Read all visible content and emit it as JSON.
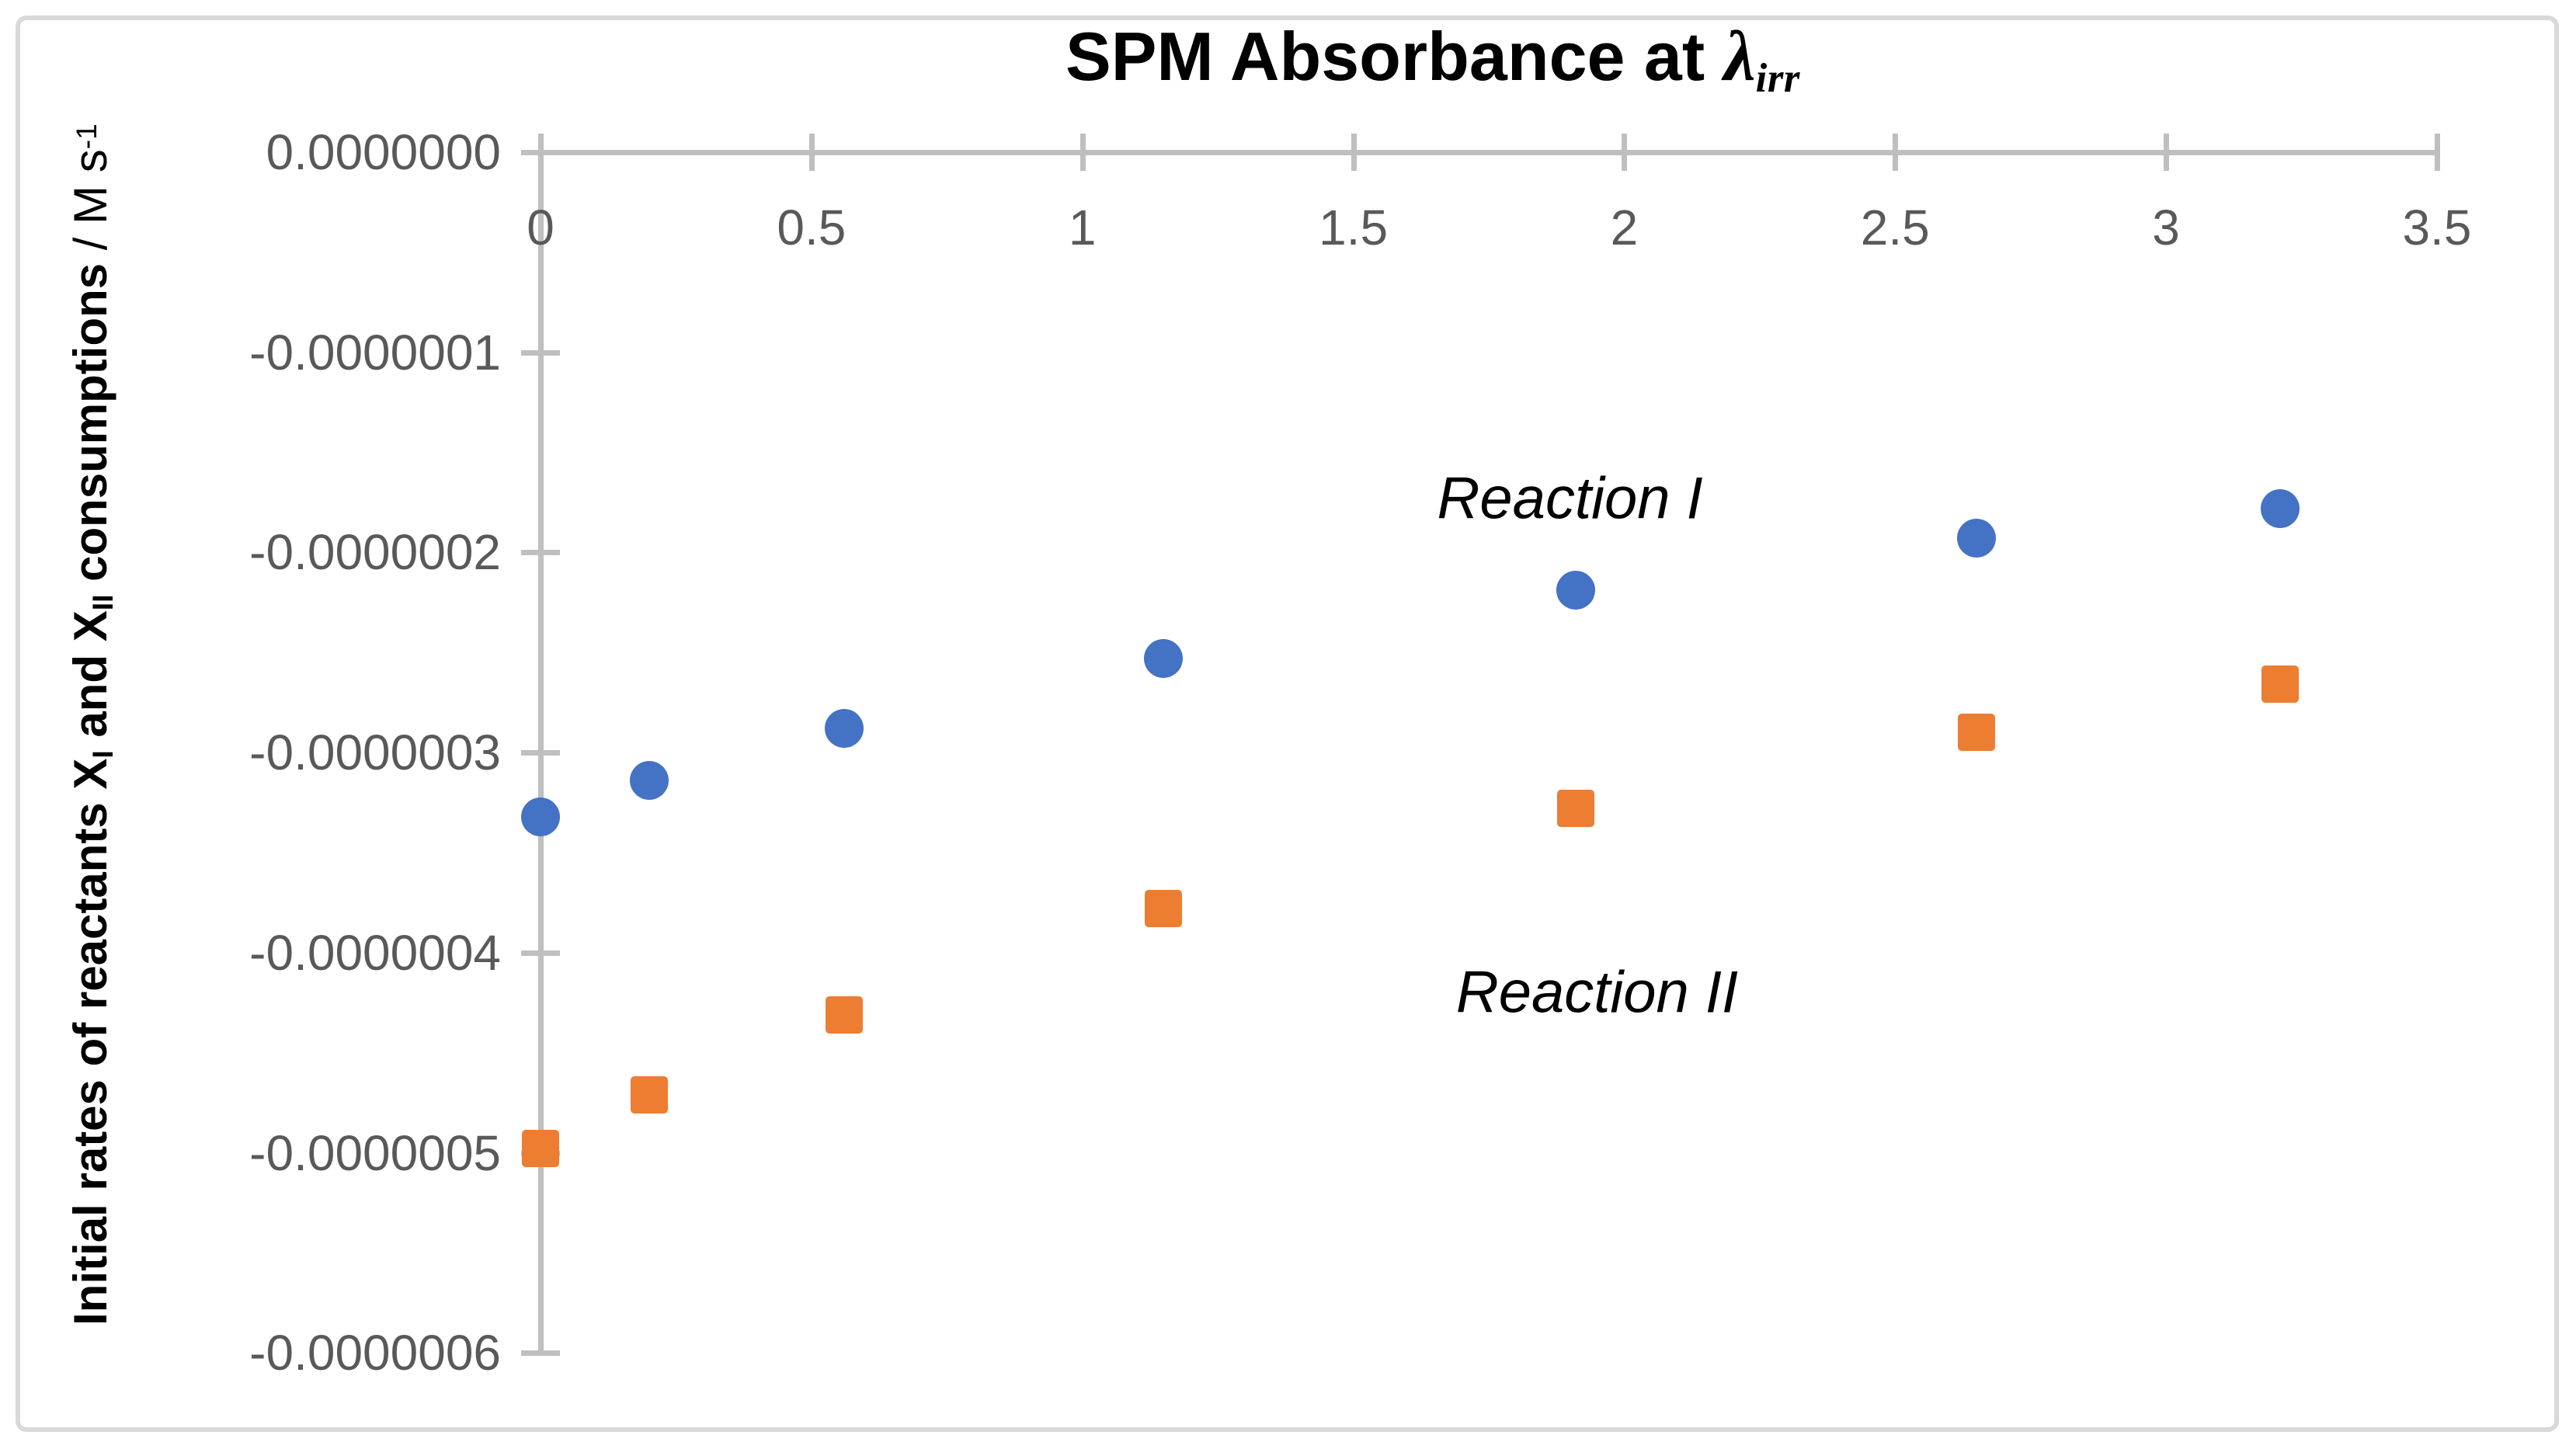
{
  "title": {
    "prefix": "SPM Absorbance at ",
    "lambda": "λ",
    "lambda_subscript": "irr"
  },
  "y_axis_label": {
    "bold_text_1": "Initial rates of reactants X",
    "subscript_1": "I",
    "bold_text_2": " and X",
    "subscript_2": "II",
    "bold_text_3": " consumptions ",
    "regular_text": "/ M s",
    "superscript": "-1"
  },
  "colors": {
    "reaction_1_marker": "#4472C4",
    "reaction_2_marker": "#ED7D31",
    "axis_line": "#BFBFBF",
    "tick_label": "#595959",
    "figure_border": "#D9D9D9",
    "text": "#000000",
    "background": "#FFFFFF"
  },
  "chart_data": {
    "type": "scatter",
    "title": "SPM Absorbance at λ_irr",
    "xlabel": "",
    "ylabel": "Initial rates of reactants X_I and X_II consumptions / M s⁻¹",
    "xlim": [
      0,
      3.5
    ],
    "ylim": [
      -6e-07,
      0
    ],
    "grid": false,
    "legend": "none",
    "x_tick_values": [
      0,
      0.5,
      1,
      1.5,
      2,
      2.5,
      3,
      3.5
    ],
    "x_tick_labels": [
      "0",
      "0.5",
      "1",
      "1.5",
      "2",
      "2.5",
      "3",
      "3.5"
    ],
    "y_tick_values": [
      0,
      -1e-07,
      -2e-07,
      -3e-07,
      -4e-07,
      -5e-07,
      -6e-07
    ],
    "y_tick_labels": [
      "0.0000000",
      "-0.0000001",
      "-0.0000002",
      "-0.0000003",
      "-0.0000004",
      "-0.0000005",
      "-0.0000006"
    ],
    "series": [
      {
        "name": "Reaction I",
        "marker": "circle",
        "color": "#4472C4",
        "x": [
          0,
          0.2,
          0.56,
          1.15,
          1.91,
          2.65,
          3.21
        ],
        "y": [
          -3.32e-07,
          -3.14e-07,
          -2.88e-07,
          -2.53e-07,
          -2.19e-07,
          -1.93e-07,
          -1.78e-07
        ]
      },
      {
        "name": "Reaction II",
        "marker": "square",
        "color": "#ED7D31",
        "x": [
          0,
          0.2,
          0.56,
          1.15,
          1.91,
          2.65,
          3.21
        ],
        "y": [
          -4.98e-07,
          -4.71e-07,
          -4.31e-07,
          -3.78e-07,
          -3.28e-07,
          -2.9e-07,
          -2.66e-07
        ]
      }
    ],
    "annotations": [
      {
        "text": "Reaction I",
        "x": 1.9,
        "y": -1.73e-07
      },
      {
        "text": "Reaction II",
        "x": 1.95,
        "y": -4.2e-07
      }
    ]
  }
}
